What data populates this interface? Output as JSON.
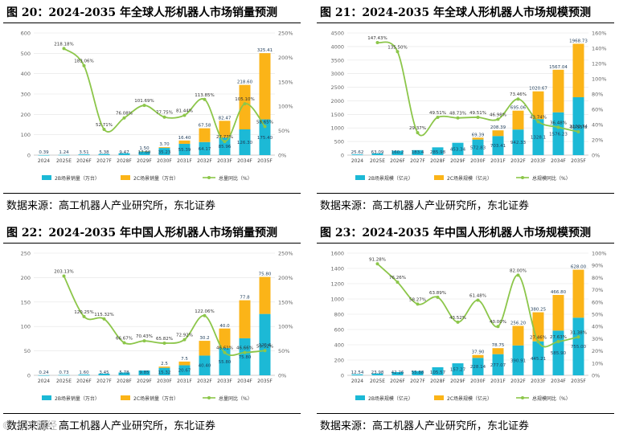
{
  "watermark": "© 九派财经",
  "colors": {
    "series_a": "#1cb9d6",
    "series_b": "#fbb418",
    "line": "#8cc64a",
    "axis": "#666666",
    "grid": "#e4e4e4"
  },
  "charts": [
    {
      "title": "图 20：2024-2035 年全球人形机器人市场销量预测",
      "source": "数据来源：高工机器人产业研究所，东北证券",
      "chart_data": {
        "type": "bar",
        "stacked": true,
        "categories": [
          "2024",
          "2025E",
          "2026F",
          "2027F",
          "2028F",
          "2029F",
          "2030F",
          "2031F",
          "2032F",
          "2033F",
          "2034F",
          "2035F"
        ],
        "series": [
          {
            "name": "2B场景销量（万台）",
            "values": [
              0.39,
              1.24,
              3.51,
              5.38,
              9.47,
              17.6,
              35.23,
              55.39,
              64.17,
              85.96,
              126.3,
              175.4
            ]
          },
          {
            "name": "2C场景销量（万台）",
            "values": [
              0,
              0,
              0,
              0,
              0,
              1.5,
              3.7,
              16.4,
              67.58,
              82.47,
              218.6,
              325.41
            ]
          }
        ],
        "line": {
          "name": "总量同比（%）",
          "values": [
            null,
            218.18,
            183.06,
            52.71,
            76.08,
            101.69,
            77.75,
            81.44,
            113.85,
            27.77,
            105.1,
            58.65
          ]
        },
        "legend_labels": [
          "2B场景销量（万台）",
          "2C场景销量（万台）",
          "总量同比（%）"
        ],
        "left_ticks": [
          "0",
          "100",
          "200",
          "300",
          "400",
          "500",
          "600"
        ],
        "right_ticks": [
          "0%",
          "50%",
          "100%",
          "150%",
          "200%",
          "250%"
        ],
        "ylim": [
          0,
          600
        ],
        "y2lim": [
          0,
          250
        ],
        "a_labels": [
          "0.39",
          "1.24",
          "3.51",
          "5.38",
          "9.47",
          "17.60",
          "35.23",
          "55.39",
          "64.17",
          "85.96",
          "126.30",
          "175.40"
        ],
        "b_labels": [
          "",
          "",
          "",
          "",
          "",
          "1.50",
          "3.70",
          "16.40",
          "67.58",
          "82.47",
          "218.60",
          "325.41"
        ],
        "line_labels": [
          "",
          "218.18%",
          "183.06%",
          "52.71%",
          "76.08%",
          "101.69%",
          "77.75%",
          "81.44%",
          "113.85%",
          "27.77%",
          "105.10%",
          "58.65%"
        ]
      }
    },
    {
      "title": "图 21：2024-2035 年全球人形机器人市场规模预测",
      "source": "数据来源：高工机器人产业研究所，东北证券",
      "chart_data": {
        "type": "bar",
        "stacked": true,
        "categories": [
          "2024",
          "2025E",
          "2026F",
          "2027F",
          "2028F",
          "2029F",
          "2030F",
          "2031F",
          "2032F",
          "2033F",
          "2034F",
          "2035F"
        ],
        "series": [
          {
            "name": "2B场景规模（亿元）",
            "values": [
              25.62,
              63.09,
              160.2,
              183.4,
              285.98,
              453.34,
              572.83,
              703.41,
              942.33,
              1328.1,
              1576.23,
              2132.74
            ]
          },
          {
            "name": "2C场景规模（亿元）",
            "values": [
              0,
              0,
              0,
              0,
              0,
              0,
              69.39,
              208.39,
              695.06,
              1020.67,
              1567.04,
              1968.73
            ]
          }
        ],
        "line": {
          "name": "总规模同比（%）",
          "values": [
            null,
            147.43,
            135.5,
            29.37,
            49.51,
            48.73,
            49.51,
            46.98,
            73.46,
            43.74,
            36.48,
            30.55
          ]
        },
        "legend_labels": [
          "2B场景规模（亿元）",
          "2C场景规模（亿元）",
          "总规模同比（%）"
        ],
        "left_ticks": [
          "0",
          "500",
          "1000",
          "1500",
          "2000",
          "2500",
          "3000",
          "3500",
          "4000",
          "4500"
        ],
        "right_ticks": [
          "0%",
          "20%",
          "40%",
          "60%",
          "80%",
          "100%",
          "120%",
          "140%",
          "160%"
        ],
        "ylim": [
          0,
          4500
        ],
        "y2lim": [
          0,
          160
        ],
        "a_labels": [
          "25.62",
          "63.09",
          "160.2",
          "183.4",
          "285.98",
          "453.34",
          "572.83",
          "703.41",
          "942.33",
          "1328.1",
          "1576.23",
          "2132.74"
        ],
        "b_labels": [
          "",
          "",
          "",
          "",
          "",
          "",
          "69.39",
          "208.39",
          "695.06",
          "1020.67",
          "1567.04",
          "1968.73"
        ],
        "line_labels": [
          "",
          "147.43%",
          "135.50%",
          "29.37%",
          "49.51%",
          "48.73%",
          "49.51%",
          "46.98%",
          "73.46%",
          "43.74%",
          "36.48%",
          "30.55%"
        ]
      }
    },
    {
      "title": "图 22：2024-2035 年中国人形机器人市场销量预测",
      "source": "数据来源：高工机器人产业研究所，东北证券",
      "chart_data": {
        "type": "bar",
        "stacked": true,
        "categories": [
          "2024",
          "2025E",
          "2026F",
          "2027F",
          "2028F",
          "2029F",
          "2030F",
          "2031F",
          "2032F",
          "2033F",
          "2034F",
          "2035F"
        ],
        "series": [
          {
            "name": "2B场景销量（万台）",
            "values": [
              0.24,
              0.73,
              1.6,
              3.45,
              5.78,
              9.85,
              15.32,
              20.67,
              40.4,
              55.8,
              75.8,
              125.6
            ]
          },
          {
            "name": "2C场景销量（万台）",
            "values": [
              0,
              0,
              0,
              0,
              0,
              0,
              2.5,
              7.5,
              30.2,
              40.0,
              77.8,
              75.8
            ]
          }
        ],
        "line": {
          "name": "总量同比（%）",
          "values": [
            null,
            203.13,
            120.25,
            115.32,
            66.67,
            70.43,
            65.82,
            72.92,
            122.06,
            46.61,
            46.66,
            50.52
          ]
        },
        "legend_labels": [
          "2B场景销量（万台）",
          "2C场景销量（万台）",
          "总量同比（%）"
        ],
        "left_ticks": [
          "0",
          "50",
          "100",
          "150",
          "200",
          "250"
        ],
        "right_ticks": [
          "0%",
          "50%",
          "100%",
          "150%",
          "200%",
          "250%"
        ],
        "ylim": [
          0,
          250
        ],
        "y2lim": [
          0,
          250
        ],
        "a_labels": [
          "0.24",
          "0.73",
          "1.60",
          "3.45",
          "5.78",
          "9.85",
          "15.32",
          "20.67",
          "40.40",
          "55.80",
          "75.80",
          "125.6"
        ],
        "b_labels": [
          "",
          "",
          "",
          "",
          "",
          "",
          "2.5",
          "7.5",
          "30.2",
          "40.0",
          "77.8",
          "75.80"
        ],
        "line_labels": [
          "",
          "203.13%",
          "120.25%",
          "115.32%",
          "66.67%",
          "70.43%",
          "65.82%",
          "72.92%",
          "122.06%",
          "46.61%",
          "46.66%",
          "50.52%"
        ]
      }
    },
    {
      "title": "图 23：2024-2035 年中国人形机器人市场规模预测",
      "source": "数据来源：高工机器人产业研究所，东北证券",
      "chart_data": {
        "type": "bar",
        "stacked": true,
        "categories": [
          "2024",
          "2025E",
          "2026F",
          "2027F",
          "2028F",
          "2029F",
          "2030F",
          "2031F",
          "2032F",
          "2033F",
          "2034F",
          "2035F"
        ],
        "series": [
          {
            "name": "2B场景规模（亿元）",
            "values": [
              12.54,
              23.98,
              42.26,
              55.88,
              105.57,
              157.27,
              228.14,
              277.07,
              390.91,
              445.21,
              585.9,
              755.0
            ]
          },
          {
            "name": "2C场景规模（亿元）",
            "values": [
              0,
              0,
              0,
              0,
              0,
              0,
              37.9,
              78.75,
              256.2,
              380.25,
              466.8,
              628.0
            ]
          }
        ],
        "line": {
          "name": "总规模同比（%）",
          "values": [
            null,
            91.28,
            76.26,
            58.27,
            63.89,
            43.52,
            61.48,
            40.0,
            82.0,
            27.46,
            27.63,
            31.38
          ]
        },
        "legend_labels": [
          "2B场景规模（亿元）",
          "2C场景规模（亿元）",
          "总规模同比（%）"
        ],
        "left_ticks": [
          "0",
          "200",
          "400",
          "600",
          "800",
          "1000",
          "1200",
          "1400",
          "1600"
        ],
        "right_ticks": [
          "0%",
          "10%",
          "20%",
          "30%",
          "40%",
          "50%",
          "60%",
          "70%",
          "80%",
          "90%",
          "100%"
        ],
        "ylim": [
          0,
          1600
        ],
        "y2lim": [
          0,
          100
        ],
        "a_labels": [
          "12.54",
          "23.98",
          "42.26",
          "55.88",
          "105.57",
          "157.27",
          "228.14",
          "277.07",
          "390.91",
          "445.21",
          "585.90",
          "755.00"
        ],
        "b_labels": [
          "",
          "",
          "",
          "",
          "",
          "",
          "37.90",
          "78.75",
          "256.20",
          "380.25",
          "466.80",
          "628.00"
        ],
        "line_labels": [
          "",
          "91.28%",
          "76.26%",
          "58.27%",
          "63.89%",
          "43.52%",
          "61.48%",
          "40.00%",
          "82.00%",
          "27.46%",
          "27.63%",
          "31.38%"
        ]
      }
    }
  ]
}
